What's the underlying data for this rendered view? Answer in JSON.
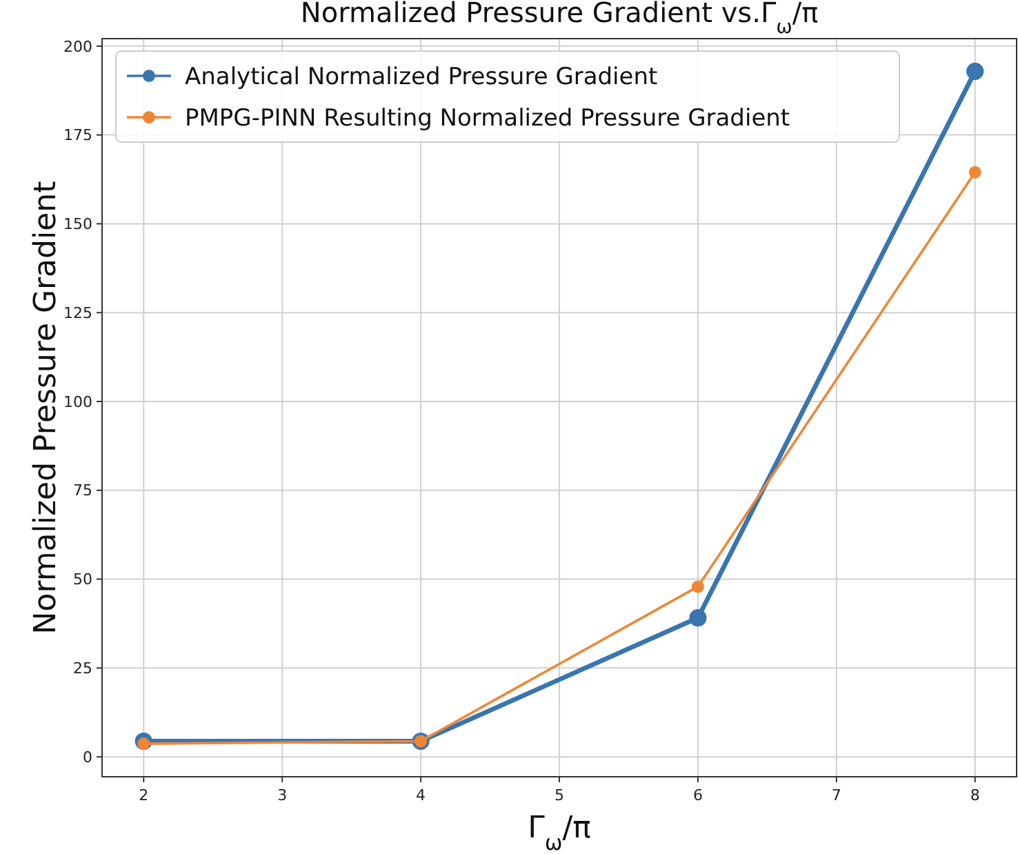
{
  "chart_data": {
    "type": "line",
    "title": "Normalized Pressure Gradient vs.Γ$_{ω}$/π",
    "xlabel": "Γ$_{ω}$/π",
    "ylabel": "Normalized Pressure Gradient",
    "x": [
      2,
      4,
      6,
      8
    ],
    "series": [
      {
        "name": "Analytical Normalized Pressure Gradient",
        "color": "#3a75b0",
        "values": [
          4.4,
          4.4,
          39.1,
          192.9
        ]
      },
      {
        "name": "PMPG-PINN Resulting Normalized Pressure Gradient",
        "color": "#ef8636",
        "values": [
          3.7,
          4.4,
          47.9,
          164.5
        ]
      }
    ],
    "xlim": [
      1.7,
      8.3
    ],
    "ylim": [
      -5.6,
      202.1
    ],
    "xticks": [
      2,
      3,
      4,
      5,
      6,
      7,
      8
    ],
    "yticks": [
      0,
      25,
      50,
      75,
      100,
      125,
      150,
      175,
      200
    ],
    "grid": true,
    "legend": "top left",
    "marker": "circle",
    "line_style": "solid"
  }
}
